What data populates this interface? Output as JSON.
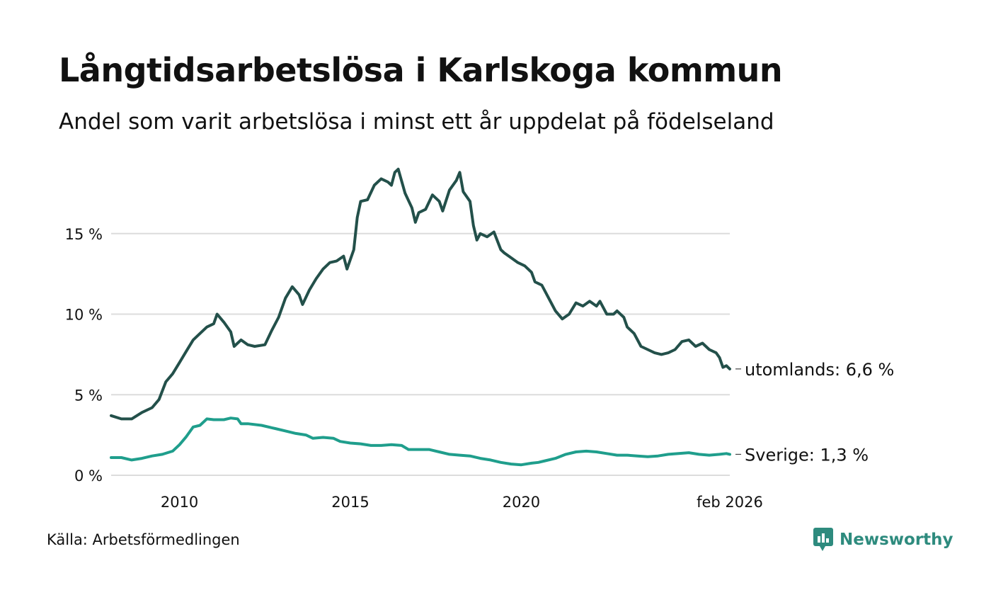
{
  "header": {
    "title": "Långtidsarbetslösa i Karlskoga kommun",
    "subtitle": "Andel som varit arbetslösa i minst ett år uppdelat på födelseland"
  },
  "footer": {
    "source": "Källa: Arbetsförmedlingen",
    "brand": "Newsworthy"
  },
  "colors": {
    "utomlands": "#23504a",
    "sverige": "#1f9e8c",
    "brand": "#2e8b7e"
  },
  "chart_data": {
    "type": "line",
    "title": "Långtidsarbetslösa i Karlskoga kommun",
    "subtitle": "Andel som varit arbetslösa i minst ett år uppdelat på födelseland",
    "xlabel": "",
    "ylabel": "",
    "xlim": [
      2008.0,
      2026.1
    ],
    "ylim": [
      0,
      19
    ],
    "grid": true,
    "yticks": [
      0,
      5,
      10,
      15
    ],
    "ytick_labels": [
      "0 %",
      "5 %",
      "10 %",
      "15 %"
    ],
    "xticks": [
      2010,
      2015,
      2020,
      2026.1
    ],
    "xtick_labels": [
      "2010",
      "2015",
      "2020",
      "feb 2026"
    ],
    "series": [
      {
        "name": "utomlands",
        "end_label": "utomlands: 6,6 %",
        "points": [
          [
            2008.0,
            3.7
          ],
          [
            2008.3,
            3.5
          ],
          [
            2008.6,
            3.5
          ],
          [
            2008.9,
            3.9
          ],
          [
            2009.2,
            4.2
          ],
          [
            2009.4,
            4.7
          ],
          [
            2009.6,
            5.8
          ],
          [
            2009.8,
            6.3
          ],
          [
            2010.0,
            7.0
          ],
          [
            2010.2,
            7.7
          ],
          [
            2010.4,
            8.4
          ],
          [
            2010.6,
            8.8
          ],
          [
            2010.8,
            9.2
          ],
          [
            2011.0,
            9.4
          ],
          [
            2011.1,
            10.0
          ],
          [
            2011.3,
            9.5
          ],
          [
            2011.5,
            8.9
          ],
          [
            2011.6,
            8.0
          ],
          [
            2011.8,
            8.4
          ],
          [
            2012.0,
            8.1
          ],
          [
            2012.2,
            8.0
          ],
          [
            2012.5,
            8.1
          ],
          [
            2012.7,
            9.0
          ],
          [
            2012.9,
            9.8
          ],
          [
            2013.1,
            11.0
          ],
          [
            2013.3,
            11.7
          ],
          [
            2013.5,
            11.2
          ],
          [
            2013.6,
            10.6
          ],
          [
            2013.8,
            11.5
          ],
          [
            2014.0,
            12.2
          ],
          [
            2014.2,
            12.8
          ],
          [
            2014.4,
            13.2
          ],
          [
            2014.6,
            13.3
          ],
          [
            2014.8,
            13.6
          ],
          [
            2014.9,
            12.8
          ],
          [
            2015.1,
            14.0
          ],
          [
            2015.2,
            16.0
          ],
          [
            2015.3,
            17.0
          ],
          [
            2015.5,
            17.1
          ],
          [
            2015.7,
            18.0
          ],
          [
            2015.9,
            18.4
          ],
          [
            2016.1,
            18.2
          ],
          [
            2016.2,
            18.0
          ],
          [
            2016.3,
            18.8
          ],
          [
            2016.4,
            19.0
          ],
          [
            2016.6,
            17.5
          ],
          [
            2016.8,
            16.6
          ],
          [
            2016.9,
            15.7
          ],
          [
            2017.0,
            16.3
          ],
          [
            2017.2,
            16.5
          ],
          [
            2017.4,
            17.4
          ],
          [
            2017.6,
            17.0
          ],
          [
            2017.7,
            16.4
          ],
          [
            2017.9,
            17.7
          ],
          [
            2018.1,
            18.3
          ],
          [
            2018.2,
            18.8
          ],
          [
            2018.3,
            17.6
          ],
          [
            2018.5,
            17.0
          ],
          [
            2018.6,
            15.5
          ],
          [
            2018.7,
            14.6
          ],
          [
            2018.8,
            15.0
          ],
          [
            2019.0,
            14.8
          ],
          [
            2019.2,
            15.1
          ],
          [
            2019.4,
            14.0
          ],
          [
            2019.5,
            13.8
          ],
          [
            2019.7,
            13.5
          ],
          [
            2019.9,
            13.2
          ],
          [
            2020.1,
            13.0
          ],
          [
            2020.3,
            12.6
          ],
          [
            2020.4,
            12.0
          ],
          [
            2020.6,
            11.8
          ],
          [
            2020.8,
            11.0
          ],
          [
            2021.0,
            10.2
          ],
          [
            2021.2,
            9.7
          ],
          [
            2021.4,
            10.0
          ],
          [
            2021.6,
            10.7
          ],
          [
            2021.8,
            10.5
          ],
          [
            2022.0,
            10.8
          ],
          [
            2022.2,
            10.5
          ],
          [
            2022.3,
            10.8
          ],
          [
            2022.5,
            10.0
          ],
          [
            2022.7,
            10.0
          ],
          [
            2022.8,
            10.2
          ],
          [
            2023.0,
            9.8
          ],
          [
            2023.1,
            9.2
          ],
          [
            2023.3,
            8.8
          ],
          [
            2023.5,
            8.0
          ],
          [
            2023.7,
            7.8
          ],
          [
            2023.9,
            7.6
          ],
          [
            2024.1,
            7.5
          ],
          [
            2024.3,
            7.6
          ],
          [
            2024.5,
            7.8
          ],
          [
            2024.7,
            8.3
          ],
          [
            2024.9,
            8.4
          ],
          [
            2025.1,
            8.0
          ],
          [
            2025.3,
            8.2
          ],
          [
            2025.5,
            7.8
          ],
          [
            2025.7,
            7.6
          ],
          [
            2025.8,
            7.3
          ],
          [
            2025.9,
            6.7
          ],
          [
            2026.0,
            6.8
          ],
          [
            2026.1,
            6.6
          ]
        ]
      },
      {
        "name": "Sverige",
        "end_label": "Sverige: 1,3 %",
        "points": [
          [
            2008.0,
            1.1
          ],
          [
            2008.3,
            1.1
          ],
          [
            2008.6,
            0.95
          ],
          [
            2008.9,
            1.05
          ],
          [
            2009.2,
            1.2
          ],
          [
            2009.5,
            1.3
          ],
          [
            2009.8,
            1.5
          ],
          [
            2010.0,
            1.9
          ],
          [
            2010.2,
            2.4
          ],
          [
            2010.4,
            3.0
          ],
          [
            2010.6,
            3.1
          ],
          [
            2010.8,
            3.5
          ],
          [
            2011.0,
            3.45
          ],
          [
            2011.3,
            3.45
          ],
          [
            2011.5,
            3.55
          ],
          [
            2011.7,
            3.5
          ],
          [
            2011.8,
            3.2
          ],
          [
            2012.0,
            3.2
          ],
          [
            2012.4,
            3.1
          ],
          [
            2012.7,
            2.95
          ],
          [
            2012.8,
            2.9
          ],
          [
            2013.1,
            2.75
          ],
          [
            2013.4,
            2.6
          ],
          [
            2013.7,
            2.5
          ],
          [
            2013.9,
            2.3
          ],
          [
            2014.2,
            2.35
          ],
          [
            2014.5,
            2.3
          ],
          [
            2014.7,
            2.1
          ],
          [
            2015.0,
            2.0
          ],
          [
            2015.3,
            1.95
          ],
          [
            2015.6,
            1.85
          ],
          [
            2015.9,
            1.85
          ],
          [
            2016.2,
            1.9
          ],
          [
            2016.5,
            1.85
          ],
          [
            2016.7,
            1.6
          ],
          [
            2017.0,
            1.6
          ],
          [
            2017.3,
            1.6
          ],
          [
            2017.6,
            1.45
          ],
          [
            2017.9,
            1.3
          ],
          [
            2018.2,
            1.25
          ],
          [
            2018.5,
            1.2
          ],
          [
            2018.8,
            1.05
          ],
          [
            2019.1,
            0.95
          ],
          [
            2019.4,
            0.8
          ],
          [
            2019.7,
            0.7
          ],
          [
            2020.0,
            0.65
          ],
          [
            2020.3,
            0.75
          ],
          [
            2020.5,
            0.8
          ],
          [
            2020.7,
            0.9
          ],
          [
            2021.0,
            1.05
          ],
          [
            2021.3,
            1.3
          ],
          [
            2021.6,
            1.45
          ],
          [
            2021.9,
            1.5
          ],
          [
            2022.2,
            1.45
          ],
          [
            2022.5,
            1.35
          ],
          [
            2022.8,
            1.25
          ],
          [
            2023.1,
            1.25
          ],
          [
            2023.4,
            1.2
          ],
          [
            2023.7,
            1.15
          ],
          [
            2024.0,
            1.2
          ],
          [
            2024.3,
            1.3
          ],
          [
            2024.6,
            1.35
          ],
          [
            2024.9,
            1.4
          ],
          [
            2025.2,
            1.3
          ],
          [
            2025.5,
            1.25
          ],
          [
            2025.8,
            1.3
          ],
          [
            2026.0,
            1.35
          ],
          [
            2026.1,
            1.3
          ]
        ]
      }
    ]
  }
}
